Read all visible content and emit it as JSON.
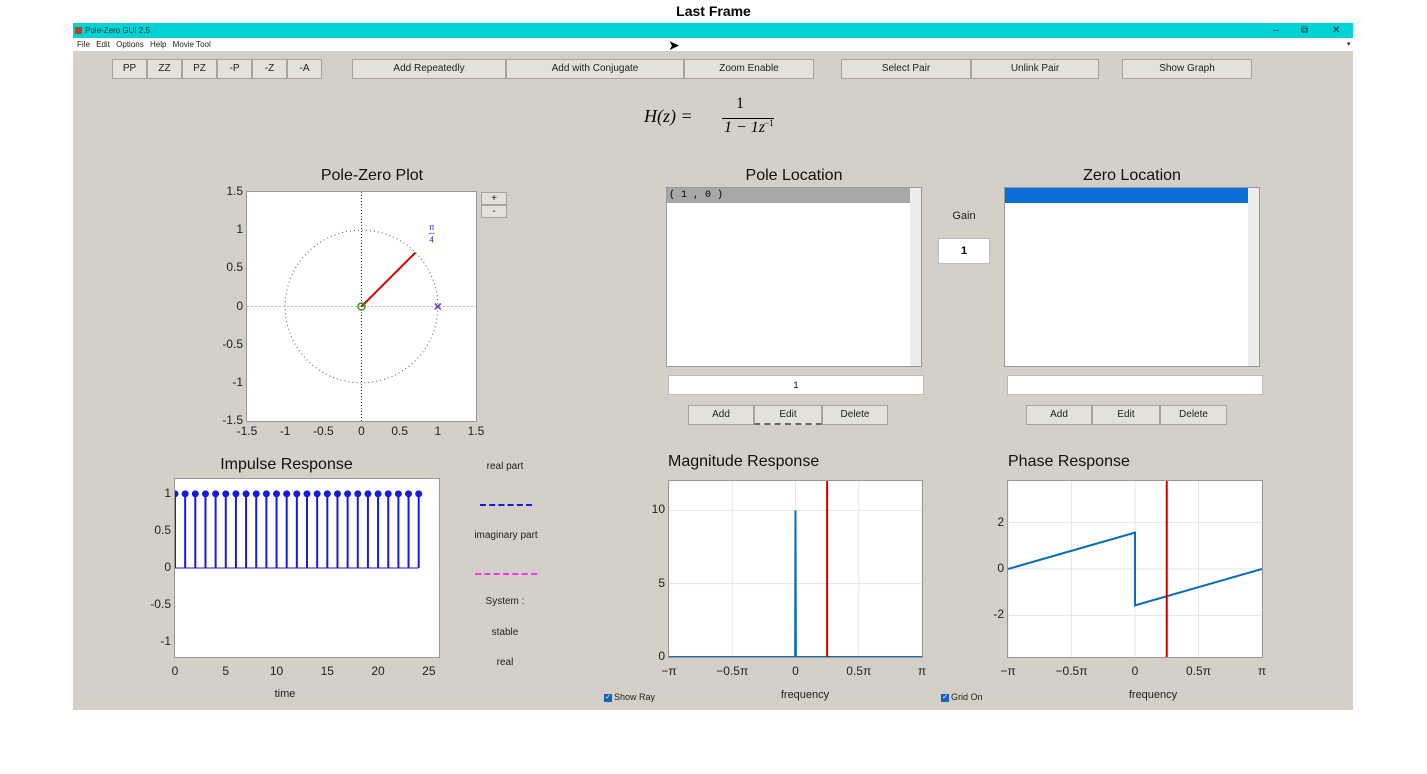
{
  "frame_title": "Last Frame",
  "window": {
    "title": "Pole-Zero GUI 2.5",
    "minimize": "–",
    "restore": "⧉",
    "close": "✕"
  },
  "menu": [
    "File",
    "Edit",
    "Options",
    "Help",
    "Movie Tool"
  ],
  "toolbar": {
    "pp": "PP",
    "zz": "ZZ",
    "pz": "PZ",
    "mp": "-P",
    "mz": "-Z",
    "ma": "-A",
    "add_repeatedly": "Add Repeatedly",
    "add_conjugate": "Add with Conjugate",
    "zoom_enable": "Zoom Enable",
    "select_pair": "Select Pair",
    "unlink_pair": "Unlink Pair",
    "show_graph": "Show Graph"
  },
  "formula": {
    "lhs": "H(z) =",
    "numerator": "1",
    "denominator": "1 − 1z",
    "exponent": "−1"
  },
  "pz_plot": {
    "title": "Pole-Zero Plot",
    "zoom_in": "+",
    "zoom_out": "-",
    "angle_label_num": "π",
    "angle_label_den": "4",
    "x_ticks": [
      "-1.5",
      "-1",
      "-0.5",
      "0",
      "0.5",
      "1",
      "1.5"
    ],
    "y_ticks": [
      "1.5",
      "1",
      "0.5",
      "0",
      "-0.5",
      "-1",
      "-1.5"
    ],
    "pole": [
      1,
      0
    ],
    "zero": [
      0,
      0
    ],
    "ray_angle_deg": 45,
    "colors": {
      "ray": "#d00000",
      "pole": "#7b2fb5",
      "zero": "#3f8f1f"
    }
  },
  "pole_location": {
    "title": "Pole Location",
    "items": [
      "( 1 , 0 )"
    ],
    "entry": "1",
    "add": "Add",
    "edit": "Edit",
    "delete": "Delete"
  },
  "gain": {
    "label": "Gain",
    "value": "1"
  },
  "zero_location": {
    "title": "Zero Location",
    "entry": "",
    "add": "Add",
    "edit": "Edit",
    "delete": "Delete"
  },
  "impulse": {
    "title": "Impulse Response",
    "xlabel": "time",
    "x_ticks": [
      "0",
      "5",
      "10",
      "15",
      "20",
      "25"
    ],
    "y_ticks": [
      "1",
      "0.5",
      "0",
      "-0.5",
      "-1"
    ]
  },
  "legend": {
    "real": "real part",
    "imag": "imaginary part",
    "system": "System :",
    "stable": "stable",
    "type": "real"
  },
  "magnitude": {
    "title": "Magnitude Response",
    "xlabel": "frequency",
    "y_ticks": [
      "10",
      "5",
      "0"
    ],
    "x_ticks": [
      "−π",
      "−0.5π",
      "0",
      "0.5π",
      "π"
    ]
  },
  "phase": {
    "title": "Phase Response",
    "xlabel": "frequency",
    "y_ticks": [
      "2",
      "0",
      "-2"
    ],
    "x_ticks": [
      "−π",
      "−0.5π",
      "0",
      "0.5π",
      "π"
    ]
  },
  "checkboxes": {
    "show_ray": "Show Ray",
    "grid_on": "Grid On"
  },
  "chart_data": [
    {
      "type": "scatter",
      "title": "Pole-Zero Plot",
      "xlim": [
        -1.5,
        1.5
      ],
      "ylim": [
        -1.5,
        1.5
      ],
      "poles": [
        [
          1,
          0
        ]
      ],
      "zeros": [
        [
          0,
          0
        ]
      ],
      "unit_circle": true
    },
    {
      "type": "bar",
      "title": "Impulse Response",
      "xlabel": "time",
      "x": [
        0,
        1,
        2,
        3,
        4,
        5,
        6,
        7,
        8,
        9,
        10,
        11,
        12,
        13,
        14,
        15,
        16,
        17,
        18,
        19,
        20,
        21,
        22,
        23,
        24
      ],
      "values": [
        1,
        1,
        1,
        1,
        1,
        1,
        1,
        1,
        1,
        1,
        1,
        1,
        1,
        1,
        1,
        1,
        1,
        1,
        1,
        1,
        1,
        1,
        1,
        1,
        1
      ],
      "xlim": [
        0,
        25
      ],
      "ylim": [
        -1.2,
        1.2
      ]
    },
    {
      "type": "line",
      "title": "Magnitude Response",
      "xlabel": "frequency",
      "x_pi": [
        -1,
        -0.003,
        0,
        0.003,
        1
      ],
      "y": [
        0,
        0,
        10,
        0,
        0
      ],
      "ylim": [
        0,
        12
      ],
      "marker_x_pi": 0.25
    },
    {
      "type": "line",
      "title": "Phase Response",
      "xlabel": "frequency",
      "x_pi": [
        -1,
        0,
        0,
        1
      ],
      "y": [
        0,
        1.5708,
        -1.5708,
        0
      ],
      "ylim": [
        -3.8,
        3.8
      ],
      "marker_x_pi": 0.25
    }
  ]
}
